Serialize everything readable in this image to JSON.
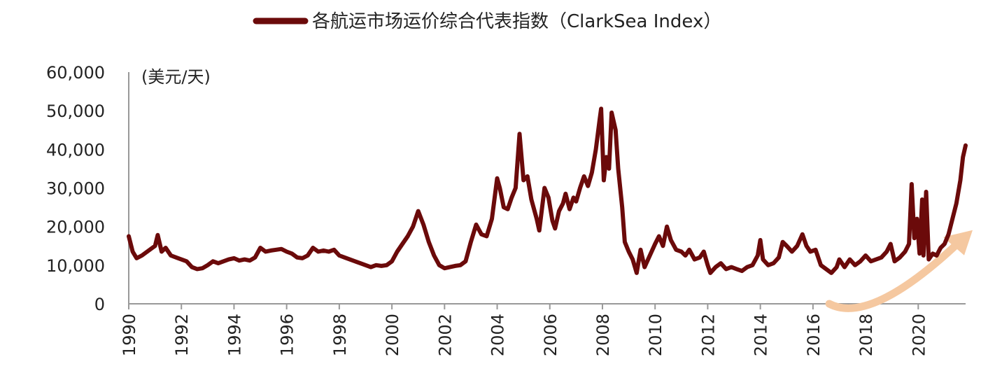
{
  "chart_data": {
    "type": "line",
    "title": "",
    "xlabel": "",
    "ylabel": "(美元/天)",
    "xlim": [
      1990,
      2021.8
    ],
    "ylim": [
      0,
      60000
    ],
    "grid": false,
    "legend": "top-center",
    "x_ticks": [
      "1990",
      "1992",
      "1994",
      "1996",
      "1998",
      "2000",
      "2002",
      "2004",
      "2006",
      "2008",
      "2010",
      "2012",
      "2014",
      "2016",
      "2018",
      "2020"
    ],
    "y_ticks": [
      "0",
      "10,000",
      "20,000",
      "30,000",
      "40,000",
      "50,000",
      "60,000"
    ],
    "series": [
      {
        "name": "各航运市场运价综合代表指数（ClarkSea Index）",
        "color": "#6b0a0a",
        "points": [
          [
            1990.0,
            17500
          ],
          [
            1990.15,
            13500
          ],
          [
            1990.3,
            11800
          ],
          [
            1990.5,
            12500
          ],
          [
            1990.7,
            13500
          ],
          [
            1990.9,
            14500
          ],
          [
            1991.0,
            15000
          ],
          [
            1991.1,
            17800
          ],
          [
            1991.25,
            13500
          ],
          [
            1991.4,
            14500
          ],
          [
            1991.6,
            12500
          ],
          [
            1991.8,
            12000
          ],
          [
            1992.0,
            11500
          ],
          [
            1992.2,
            11000
          ],
          [
            1992.4,
            9500
          ],
          [
            1992.6,
            9000
          ],
          [
            1992.8,
            9200
          ],
          [
            1993.0,
            10000
          ],
          [
            1993.2,
            11000
          ],
          [
            1993.4,
            10500
          ],
          [
            1993.6,
            11000
          ],
          [
            1993.8,
            11500
          ],
          [
            1994.0,
            11800
          ],
          [
            1994.2,
            11200
          ],
          [
            1994.4,
            11500
          ],
          [
            1994.6,
            11200
          ],
          [
            1994.8,
            12000
          ],
          [
            1995.0,
            14500
          ],
          [
            1995.2,
            13500
          ],
          [
            1995.4,
            13800
          ],
          [
            1995.6,
            14000
          ],
          [
            1995.8,
            14200
          ],
          [
            1996.0,
            13500
          ],
          [
            1996.2,
            13000
          ],
          [
            1996.4,
            12000
          ],
          [
            1996.6,
            11800
          ],
          [
            1996.8,
            12500
          ],
          [
            1997.0,
            14500
          ],
          [
            1997.2,
            13500
          ],
          [
            1997.4,
            13800
          ],
          [
            1997.6,
            13500
          ],
          [
            1997.8,
            14000
          ],
          [
            1998.0,
            12500
          ],
          [
            1998.2,
            12000
          ],
          [
            1998.4,
            11500
          ],
          [
            1998.6,
            11000
          ],
          [
            1998.8,
            10500
          ],
          [
            1999.0,
            10000
          ],
          [
            1999.2,
            9500
          ],
          [
            1999.4,
            10000
          ],
          [
            1999.6,
            9800
          ],
          [
            1999.8,
            10000
          ],
          [
            2000.0,
            11000
          ],
          [
            2000.2,
            13500
          ],
          [
            2000.4,
            15500
          ],
          [
            2000.6,
            17500
          ],
          [
            2000.8,
            20000
          ],
          [
            2001.0,
            24000
          ],
          [
            2001.2,
            20500
          ],
          [
            2001.4,
            16000
          ],
          [
            2001.6,
            12500
          ],
          [
            2001.8,
            10000
          ],
          [
            2002.0,
            9200
          ],
          [
            2002.2,
            9500
          ],
          [
            2002.4,
            9800
          ],
          [
            2002.6,
            10000
          ],
          [
            2002.8,
            11000
          ],
          [
            2003.0,
            16000
          ],
          [
            2003.2,
            20500
          ],
          [
            2003.4,
            18000
          ],
          [
            2003.6,
            17500
          ],
          [
            2003.8,
            22000
          ],
          [
            2004.0,
            32500
          ],
          [
            2004.1,
            30000
          ],
          [
            2004.25,
            25000
          ],
          [
            2004.4,
            24500
          ],
          [
            2004.55,
            27500
          ],
          [
            2004.7,
            30000
          ],
          [
            2004.85,
            44000
          ],
          [
            2005.0,
            32000
          ],
          [
            2005.15,
            33000
          ],
          [
            2005.3,
            27000
          ],
          [
            2005.5,
            22000
          ],
          [
            2005.6,
            19000
          ],
          [
            2005.8,
            30000
          ],
          [
            2005.95,
            27500
          ],
          [
            2006.1,
            21500
          ],
          [
            2006.2,
            19500
          ],
          [
            2006.35,
            24000
          ],
          [
            2006.5,
            26000
          ],
          [
            2006.6,
            28500
          ],
          [
            2006.75,
            24500
          ],
          [
            2006.9,
            27500
          ],
          [
            2007.0,
            26500
          ],
          [
            2007.15,
            30000
          ],
          [
            2007.3,
            33000
          ],
          [
            2007.45,
            30500
          ],
          [
            2007.6,
            34000
          ],
          [
            2007.75,
            40000
          ],
          [
            2007.9,
            48000
          ],
          [
            2007.95,
            50500
          ],
          [
            2008.05,
            32000
          ],
          [
            2008.15,
            38000
          ],
          [
            2008.25,
            35000
          ],
          [
            2008.35,
            49500
          ],
          [
            2008.5,
            45000
          ],
          [
            2008.6,
            35000
          ],
          [
            2008.75,
            25000
          ],
          [
            2008.85,
            16000
          ],
          [
            2009.0,
            13500
          ],
          [
            2009.15,
            11500
          ],
          [
            2009.3,
            8000
          ],
          [
            2009.45,
            14000
          ],
          [
            2009.6,
            9500
          ],
          [
            2009.8,
            12500
          ],
          [
            2010.0,
            15500
          ],
          [
            2010.15,
            17500
          ],
          [
            2010.3,
            15000
          ],
          [
            2010.45,
            20000
          ],
          [
            2010.6,
            16500
          ],
          [
            2010.8,
            14000
          ],
          [
            2011.0,
            13500
          ],
          [
            2011.15,
            12500
          ],
          [
            2011.3,
            14000
          ],
          [
            2011.5,
            11500
          ],
          [
            2011.7,
            12000
          ],
          [
            2011.85,
            13500
          ],
          [
            2012.0,
            10000
          ],
          [
            2012.1,
            8000
          ],
          [
            2012.3,
            9500
          ],
          [
            2012.5,
            10500
          ],
          [
            2012.7,
            9000
          ],
          [
            2012.9,
            9500
          ],
          [
            2013.1,
            9000
          ],
          [
            2013.3,
            8500
          ],
          [
            2013.5,
            9500
          ],
          [
            2013.7,
            10000
          ],
          [
            2013.9,
            12500
          ],
          [
            2014.0,
            16500
          ],
          [
            2014.1,
            11500
          ],
          [
            2014.3,
            10000
          ],
          [
            2014.5,
            10500
          ],
          [
            2014.7,
            12000
          ],
          [
            2014.85,
            16000
          ],
          [
            2015.0,
            15000
          ],
          [
            2015.2,
            13500
          ],
          [
            2015.4,
            15000
          ],
          [
            2015.6,
            18000
          ],
          [
            2015.75,
            15000
          ],
          [
            2015.9,
            13500
          ],
          [
            2016.1,
            14000
          ],
          [
            2016.3,
            10000
          ],
          [
            2016.5,
            9000
          ],
          [
            2016.7,
            8000
          ],
          [
            2016.9,
            9500
          ],
          [
            2017.0,
            11500
          ],
          [
            2017.2,
            9500
          ],
          [
            2017.4,
            11500
          ],
          [
            2017.6,
            10000
          ],
          [
            2017.8,
            11000
          ],
          [
            2018.0,
            12500
          ],
          [
            2018.2,
            11000
          ],
          [
            2018.4,
            11500
          ],
          [
            2018.6,
            12000
          ],
          [
            2018.8,
            13500
          ],
          [
            2018.95,
            15500
          ],
          [
            2019.1,
            11000
          ],
          [
            2019.3,
            12000
          ],
          [
            2019.5,
            13500
          ],
          [
            2019.65,
            15500
          ],
          [
            2019.75,
            31000
          ],
          [
            2019.85,
            17000
          ],
          [
            2019.95,
            22000
          ],
          [
            2020.05,
            13000
          ],
          [
            2020.15,
            27000
          ],
          [
            2020.2,
            12500
          ],
          [
            2020.3,
            29000
          ],
          [
            2020.4,
            11500
          ],
          [
            2020.55,
            13000
          ],
          [
            2020.7,
            12500
          ],
          [
            2020.85,
            14500
          ],
          [
            2021.0,
            15500
          ],
          [
            2021.15,
            18000
          ],
          [
            2021.3,
            22000
          ],
          [
            2021.45,
            26000
          ],
          [
            2021.6,
            32000
          ],
          [
            2021.7,
            38000
          ],
          [
            2021.8,
            41000
          ]
        ]
      }
    ],
    "annotations": [
      {
        "type": "arrow",
        "color": "#f5c8a0",
        "from": [
          2016.3,
          0
        ],
        "via": [
          2018.2,
          -2000
        ],
        "to": [
          2021.8,
          18000
        ]
      }
    ]
  }
}
